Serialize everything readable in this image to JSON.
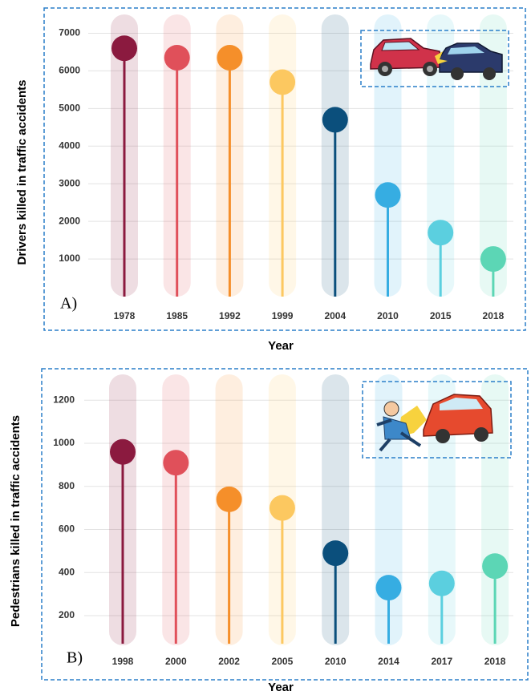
{
  "chart_data": [
    {
      "type": "lollipop",
      "panel_label": "A)",
      "y_label": "Drivers killed in traffic accidents",
      "x_label": "Year",
      "categories": [
        "1978",
        "1985",
        "1992",
        "1999",
        "2004",
        "2010",
        "2015",
        "2018"
      ],
      "values": [
        6600,
        6350,
        6350,
        5700,
        4700,
        2700,
        1700,
        1000
      ],
      "colors": [
        "#8b1a3f",
        "#e0505a",
        "#f58f2a",
        "#fcc860",
        "#0b4f7c",
        "#36ade2",
        "#5bcfdf",
        "#5cd6b5"
      ],
      "ylim": [
        0,
        7500
      ],
      "yticks": [
        1000,
        2000,
        3000,
        4000,
        5000,
        6000,
        7000
      ],
      "grid": true
    },
    {
      "type": "lollipop",
      "panel_label": "B)",
      "y_label": "Pedestrians killed in traffic accidents",
      "x_label": "Year",
      "categories": [
        "1998",
        "2000",
        "2002",
        "2005",
        "2010",
        "2014",
        "2017",
        "2018"
      ],
      "values": [
        960,
        910,
        740,
        700,
        490,
        330,
        350,
        430
      ],
      "colors": [
        "#8b1a3f",
        "#e0505a",
        "#f58f2a",
        "#fcc860",
        "#0b4f7c",
        "#36ade2",
        "#5bcfdf",
        "#5cd6b5"
      ],
      "ylim": [
        70,
        1320
      ],
      "yticks": [
        200,
        400,
        600,
        800,
        1000,
        1200
      ],
      "grid": true
    }
  ]
}
